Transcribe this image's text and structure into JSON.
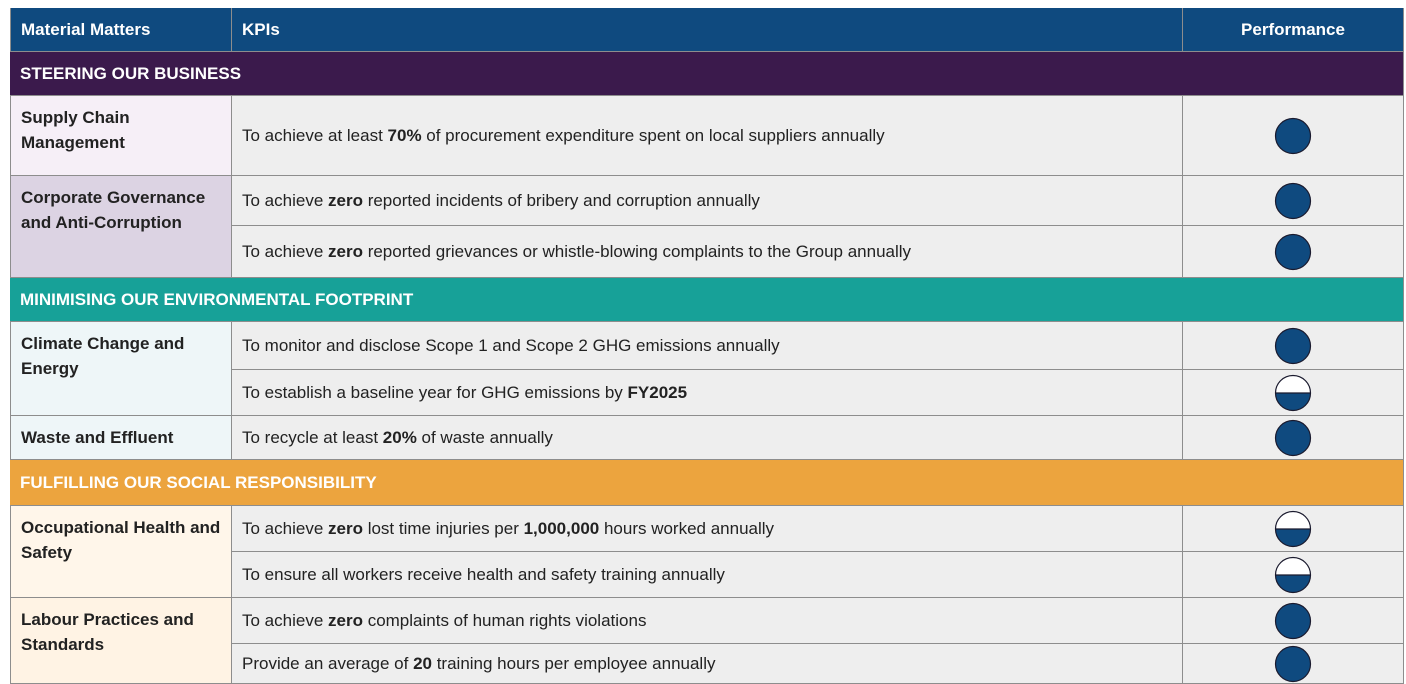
{
  "header": {
    "material_matters": "Material Matters",
    "kpis": "KPIs",
    "performance": "Performance"
  },
  "sections": [
    {
      "title": "STEERING OUR BUSINESS",
      "color": "#3b1a4c",
      "matters": [
        {
          "name": "Supply Chain Management",
          "color": "#f6eff7",
          "kpis": [
            {
              "text": [
                {
                  "text": "To achieve at least "
                },
                {
                  "text": "70%",
                  "bold": true
                },
                {
                  "text": " of procurement expenditure spent on local suppliers annually"
                }
              ],
              "performance": 1
            }
          ]
        },
        {
          "name": "Corporate Governance and Anti-Corruption",
          "color": "#dcd3e3",
          "kpis": [
            {
              "text": [
                {
                  "text": "To achieve "
                },
                {
                  "text": "zero",
                  "bold": true
                },
                {
                  "text": " reported incidents of bribery and corruption annually"
                }
              ],
              "performance": 1
            },
            {
              "text": [
                {
                  "text": "To achieve "
                },
                {
                  "text": "zero",
                  "bold": true
                },
                {
                  "text": " reported grievances or whistle-blowing complaints to the Group annually"
                }
              ],
              "performance": 1
            }
          ]
        }
      ]
    },
    {
      "title": "MINIMISING OUR ENVIRONMENTAL FOOTPRINT",
      "color": "#17a198",
      "matters": [
        {
          "name": "Climate Change and Energy",
          "color": "#eef6f8",
          "kpis": [
            {
              "text": [
                {
                  "text": "To monitor and disclose Scope 1 and Scope 2 GHG emissions annually"
                }
              ],
              "performance": 1
            },
            {
              "text": [
                {
                  "text": "To establish a baseline year for GHG emissions by "
                },
                {
                  "text": "FY2025",
                  "bold": true
                }
              ],
              "performance": 0.5
            }
          ]
        },
        {
          "name": "Waste and Effluent",
          "color": "#eef6f8",
          "kpis": [
            {
              "text": [
                {
                  "text": "To recycle at least "
                },
                {
                  "text": "20%",
                  "bold": true
                },
                {
                  "text": " of waste annually"
                }
              ],
              "performance": 1
            }
          ]
        }
      ]
    },
    {
      "title": "FULFILLING OUR SOCIAL RESPONSIBILITY",
      "color": "#eca43e",
      "matters": [
        {
          "name": "Occupational Health and Safety",
          "color": "#fff6ea",
          "kpis": [
            {
              "text": [
                {
                  "text": "To achieve "
                },
                {
                  "text": "zero",
                  "bold": true
                },
                {
                  "text": " lost time injuries per "
                },
                {
                  "text": "1,000,000",
                  "bold": true
                },
                {
                  "text": " hours worked annually"
                }
              ],
              "performance": 0.5
            },
            {
              "text": [
                {
                  "text": "To ensure all workers receive health and safety training annually"
                }
              ],
              "performance": 0.5
            }
          ]
        },
        {
          "name": "Labour Practices and Standards",
          "color": "#fff3e4",
          "kpis": [
            {
              "text": [
                {
                  "text": "To achieve "
                },
                {
                  "text": "zero",
                  "bold": true
                },
                {
                  "text": " complaints of human rights violations"
                }
              ],
              "performance": 1
            },
            {
              "text": [
                {
                  "text": "Provide an average of "
                },
                {
                  "text": "20",
                  "bold": true
                },
                {
                  "text": " training hours per employee annually"
                }
              ],
              "performance": 1
            }
          ]
        }
      ]
    }
  ]
}
